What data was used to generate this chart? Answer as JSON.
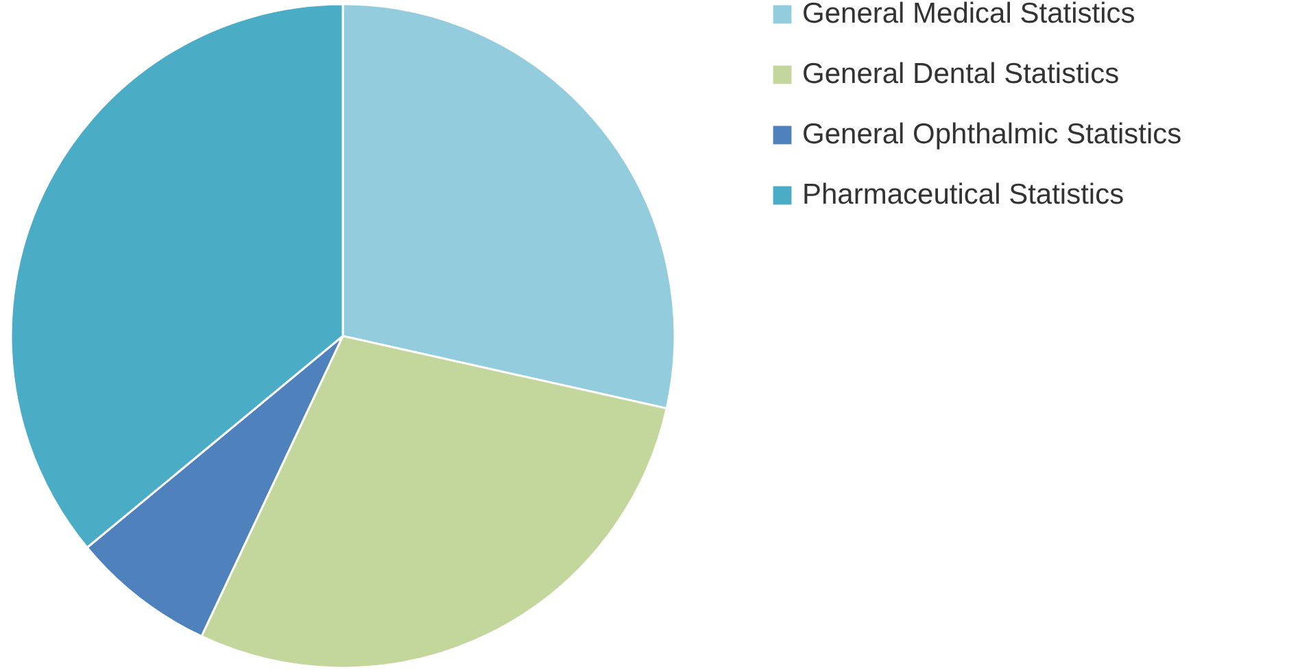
{
  "chart_data": {
    "type": "pie",
    "categories": [
      "General Medical Statistics",
      "General Dental Statistics",
      "General Ophthalmic Statistics",
      "Pharmaceutical Statistics"
    ],
    "values": [
      28.5,
      28.5,
      7,
      36
    ],
    "colors": [
      "#93cddd",
      "#c3d69b",
      "#4f81bd",
      "#4bacc6"
    ],
    "legend": "right"
  }
}
